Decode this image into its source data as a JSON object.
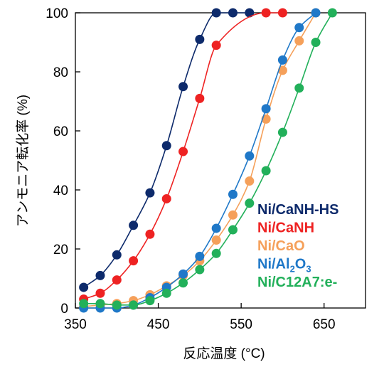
{
  "chart_data": {
    "type": "line",
    "title": "",
    "xlabel": "反応温度 (°C)",
    "ylabel": "アンモニア転化率 (%)",
    "xlim": [
      350,
      700
    ],
    "ylim": [
      0,
      100
    ],
    "x_ticks": [
      350,
      450,
      550,
      650
    ],
    "y_ticks": [
      0,
      20,
      40,
      60,
      80,
      100
    ],
    "legend_position": "lower-right",
    "grid": false,
    "series": [
      {
        "name": "Ni/CaNH-HS",
        "legend_parts": [
          {
            "t": "Ni/CaNH-HS"
          }
        ],
        "color": "#0d2a6b",
        "points": [
          [
            360,
            7
          ],
          [
            380,
            11
          ],
          [
            400,
            18
          ],
          [
            420,
            28
          ],
          [
            440,
            39
          ],
          [
            460,
            55
          ],
          [
            480,
            75
          ],
          [
            500,
            91
          ],
          [
            520,
            100
          ],
          [
            540,
            100
          ],
          [
            560,
            100
          ]
        ]
      },
      {
        "name": "Ni/CaNH",
        "legend_parts": [
          {
            "t": "Ni/CaNH"
          }
        ],
        "color": "#ee2222",
        "points": [
          [
            360,
            3
          ],
          [
            380,
            5
          ],
          [
            400,
            9.5
          ],
          [
            420,
            16
          ],
          [
            440,
            25
          ],
          [
            460,
            37
          ],
          [
            480,
            53
          ],
          [
            500,
            71
          ],
          [
            520,
            89
          ],
          [
            580,
            100
          ],
          [
            600,
            100
          ]
        ]
      },
      {
        "name": "Ni/CaO",
        "legend_parts": [
          {
            "t": "Ni/CaO"
          }
        ],
        "color": "#f5a05a",
        "points": [
          [
            360,
            0.5
          ],
          [
            380,
            1
          ],
          [
            400,
            1.5
          ],
          [
            420,
            2.5
          ],
          [
            440,
            4.5
          ],
          [
            460,
            7.5
          ],
          [
            480,
            11
          ],
          [
            500,
            16
          ],
          [
            520,
            23
          ],
          [
            540,
            31.5
          ],
          [
            560,
            43
          ],
          [
            580,
            64
          ],
          [
            600,
            80.5
          ],
          [
            620,
            90.5
          ],
          [
            640,
            100
          ]
        ]
      },
      {
        "name": "Ni/Al2O3",
        "legend_parts": [
          {
            "t": "Ni/Al"
          },
          {
            "t": "2",
            "sub": true
          },
          {
            "t": "O"
          },
          {
            "t": "3",
            "sub": true
          }
        ],
        "color": "#1f78c8",
        "points": [
          [
            360,
            0
          ],
          [
            380,
            0
          ],
          [
            400,
            0
          ],
          [
            420,
            1
          ],
          [
            440,
            3.5
          ],
          [
            460,
            7
          ],
          [
            480,
            11.5
          ],
          [
            500,
            17.5
          ],
          [
            520,
            27
          ],
          [
            540,
            38.5
          ],
          [
            560,
            51.5
          ],
          [
            580,
            67.5
          ],
          [
            600,
            84
          ],
          [
            620,
            95
          ],
          [
            640,
            100
          ]
        ]
      },
      {
        "name": "Ni/C12A7:e-",
        "legend_parts": [
          {
            "t": "Ni/C12A7:e-"
          }
        ],
        "color": "#22b05a",
        "points": [
          [
            360,
            1.5
          ],
          [
            380,
            1.5
          ],
          [
            400,
            1
          ],
          [
            420,
            1
          ],
          [
            440,
            2.5
          ],
          [
            460,
            5
          ],
          [
            480,
            8.5
          ],
          [
            500,
            13
          ],
          [
            520,
            18.5
          ],
          [
            540,
            26.5
          ],
          [
            560,
            35.5
          ],
          [
            580,
            46.5
          ],
          [
            600,
            59.5
          ],
          [
            620,
            74.5
          ],
          [
            640,
            90
          ],
          [
            660,
            100
          ]
        ]
      }
    ]
  }
}
